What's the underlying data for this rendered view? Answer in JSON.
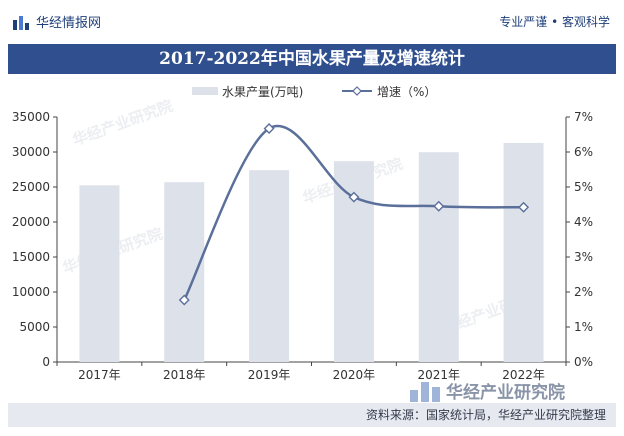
{
  "header": {
    "brand_name": "华经情报网",
    "tagline": "专业严谨 • 客观科学",
    "logo_icon": "bar-logo-icon"
  },
  "title": "2017-2022年中国水果产量及增速统计",
  "legend": {
    "bar_label": "水果产量(万吨)",
    "line_label": "增速（%）"
  },
  "footer": {
    "source": "资料来源：国家统计局，华经产业研究院整理"
  },
  "watermarks": {
    "brand": "华经产业研究院",
    "corner_brand": "华经产业研究院"
  },
  "colors": {
    "title_bg": "#2f4f8f",
    "bar": "#dde1ea",
    "line": "#5a6f9a",
    "footer_bg": "#e6e9f0"
  },
  "chart_data": {
    "type": "bar",
    "title": "2017-2022年中国水果产量及增速统计",
    "categories": [
      "2017年",
      "2018年",
      "2019年",
      "2020年",
      "2021年",
      "2022年"
    ],
    "series": [
      {
        "name": "水果产量(万吨)",
        "type": "bar",
        "axis": "left",
        "values": [
          25242,
          25688,
          27401,
          28692,
          29970,
          31296
        ]
      },
      {
        "name": "增速（%）",
        "type": "line",
        "axis": "right",
        "values": [
          null,
          1.77,
          6.67,
          4.71,
          4.45,
          4.42
        ]
      }
    ],
    "y_left": {
      "min": 0,
      "max": 35000,
      "ticks": [
        "0",
        "5000",
        "10000",
        "15000",
        "20000",
        "25000",
        "30000",
        "35000"
      ]
    },
    "y_right": {
      "min": 0,
      "max": 7,
      "ticks": [
        "0%",
        "1%",
        "2%",
        "3%",
        "4%",
        "5%",
        "6%",
        "7%"
      ]
    },
    "grid": false,
    "legend_position": "top"
  }
}
